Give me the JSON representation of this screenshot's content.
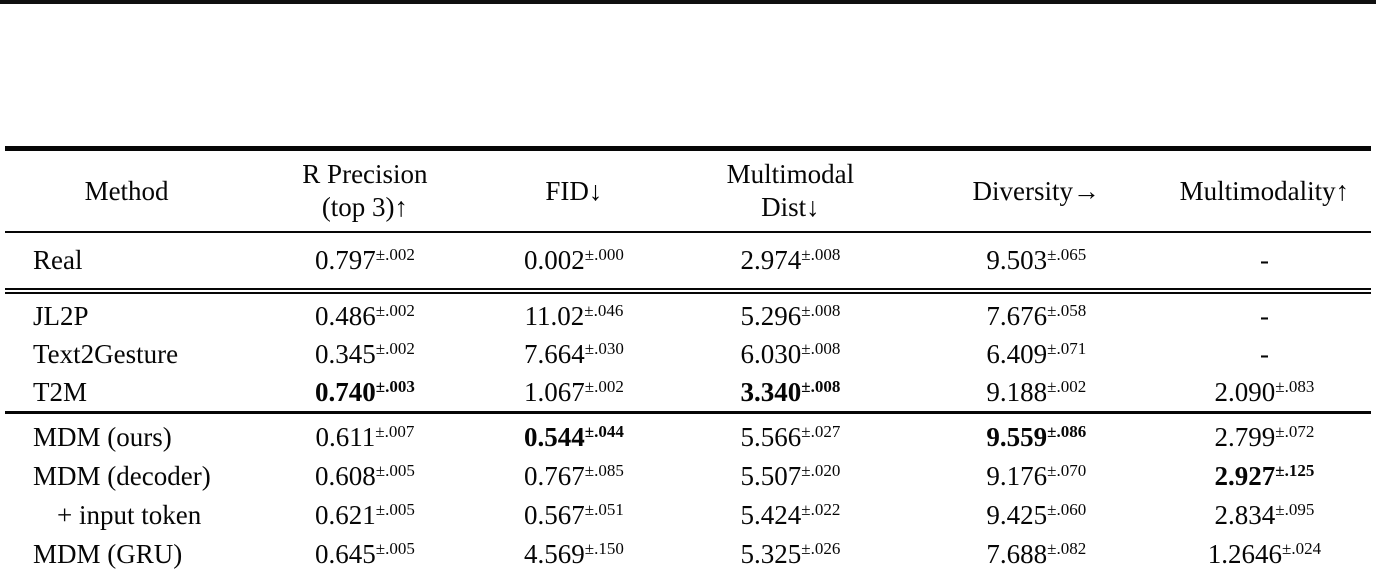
{
  "table": {
    "headers": {
      "method": "Method",
      "r_precision_line1": "R Precision",
      "r_precision_line2": "(top 3)↑",
      "fid": "FID↓",
      "mm_dist_line1": "Multimodal",
      "mm_dist_line2": "Dist↓",
      "diversity": "Diversity→",
      "multimodality": "Multimodality↑"
    },
    "rows": [
      {
        "method": "Real",
        "cells": [
          {
            "v": "0.797",
            "sup": "±.002",
            "bold": false
          },
          {
            "v": "0.002",
            "sup": "±.000",
            "bold": false
          },
          {
            "v": "2.974",
            "sup": "±.008",
            "bold": false
          },
          {
            "v": "9.503",
            "sup": "±.065",
            "bold": false
          },
          {
            "v": "-",
            "sup": "",
            "bold": false
          }
        ]
      },
      {
        "method": "JL2P",
        "cells": [
          {
            "v": "0.486",
            "sup": "±.002",
            "bold": false
          },
          {
            "v": "11.02",
            "sup": "±.046",
            "bold": false
          },
          {
            "v": "5.296",
            "sup": "±.008",
            "bold": false
          },
          {
            "v": "7.676",
            "sup": "±.058",
            "bold": false
          },
          {
            "v": "-",
            "sup": "",
            "bold": false
          }
        ]
      },
      {
        "method": "Text2Gesture",
        "cells": [
          {
            "v": "0.345",
            "sup": "±.002",
            "bold": false
          },
          {
            "v": "7.664",
            "sup": "±.030",
            "bold": false
          },
          {
            "v": "6.030",
            "sup": "±.008",
            "bold": false
          },
          {
            "v": "6.409",
            "sup": "±.071",
            "bold": false
          },
          {
            "v": "-",
            "sup": "",
            "bold": false
          }
        ]
      },
      {
        "method": "T2M",
        "cells": [
          {
            "v": "0.740",
            "sup": "±.003",
            "bold": true
          },
          {
            "v": "1.067",
            "sup": "±.002",
            "bold": false
          },
          {
            "v": "3.340",
            "sup": "±.008",
            "bold": true
          },
          {
            "v": "9.188",
            "sup": "±.002",
            "bold": false
          },
          {
            "v": "2.090",
            "sup": "±.083",
            "bold": false
          }
        ]
      },
      {
        "method": "MDM (ours)",
        "cells": [
          {
            "v": "0.611",
            "sup": "±.007",
            "bold": false
          },
          {
            "v": "0.544",
            "sup": "±.044",
            "bold": true
          },
          {
            "v": "5.566",
            "sup": "±.027",
            "bold": false
          },
          {
            "v": "9.559",
            "sup": "±.086",
            "bold": true
          },
          {
            "v": "2.799",
            "sup": "±.072",
            "bold": false
          }
        ]
      },
      {
        "method": "MDM (decoder)",
        "cells": [
          {
            "v": "0.608",
            "sup": "±.005",
            "bold": false
          },
          {
            "v": "0.767",
            "sup": "±.085",
            "bold": false
          },
          {
            "v": "5.507",
            "sup": "±.020",
            "bold": false
          },
          {
            "v": "9.176",
            "sup": "±.070",
            "bold": false
          },
          {
            "v": "2.927",
            "sup": "±.125",
            "bold": true
          }
        ]
      },
      {
        "method": "+ input token",
        "cells": [
          {
            "v": "0.621",
            "sup": "±.005",
            "bold": false
          },
          {
            "v": "0.567",
            "sup": "±.051",
            "bold": false
          },
          {
            "v": "5.424",
            "sup": "±.022",
            "bold": false
          },
          {
            "v": "9.425",
            "sup": "±.060",
            "bold": false
          },
          {
            "v": "2.834",
            "sup": "±.095",
            "bold": false
          }
        ]
      },
      {
        "method": "MDM (GRU)",
        "cells": [
          {
            "v": "0.645",
            "sup": "±.005",
            "bold": false
          },
          {
            "v": "4.569",
            "sup": "±.150",
            "bold": false
          },
          {
            "v": "5.325",
            "sup": "±.026",
            "bold": false
          },
          {
            "v": "7.688",
            "sup": "±.082",
            "bold": false
          },
          {
            "v": "1.2646",
            "sup": "±.024",
            "bold": false
          }
        ]
      }
    ]
  }
}
